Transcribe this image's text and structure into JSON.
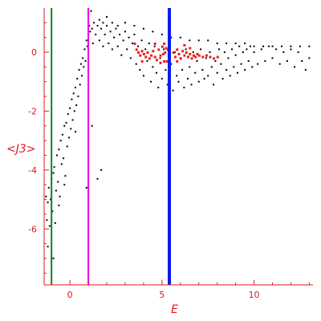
{
  "chart_data": {
    "type": "scatter",
    "title": "",
    "xlabel": "E",
    "ylabel": "<J3>",
    "xlim": [
      -1.4,
      13.2
    ],
    "ylim": [
      -7.9,
      1.5
    ],
    "x_ticks": [
      0,
      5,
      10
    ],
    "y_ticks": [
      0,
      -2,
      -4,
      -6
    ],
    "x_tick_labels": [
      "0",
      "5",
      "10"
    ],
    "y_tick_labels": [
      "0",
      "-2",
      "-4",
      "-6"
    ],
    "grid": false,
    "legend": "none",
    "axis_color": "#e0191c",
    "vertical_lines": [
      {
        "x": -1.0,
        "color": "#00861c"
      },
      {
        "x": 1.0,
        "color": "#ef00ef"
      },
      {
        "x": 5.4,
        "color": "#0a1bef"
      }
    ],
    "series": [
      {
        "color": "#000000",
        "points": [
          [
            -1.3,
            -4.9
          ],
          [
            -1.25,
            -5.7
          ],
          [
            -1.2,
            -5.1
          ],
          [
            -1.15,
            -4.6
          ],
          [
            -1.1,
            -5.9
          ],
          [
            -1.05,
            -5.0
          ],
          [
            -1.0,
            -4.3
          ],
          [
            -0.95,
            -5.4
          ],
          [
            -0.9,
            -4.1
          ],
          [
            -0.85,
            -3.9
          ],
          [
            -0.8,
            -5.8
          ],
          [
            -0.75,
            -4.7
          ],
          [
            -0.7,
            -3.5
          ],
          [
            -0.65,
            -4.4
          ],
          [
            -0.6,
            -3.3
          ],
          [
            -0.55,
            -4.9
          ],
          [
            -0.5,
            -3.0
          ],
          [
            -0.45,
            -3.8
          ],
          [
            -0.4,
            -2.8
          ],
          [
            -0.35,
            -3.6
          ],
          [
            -0.3,
            -2.5
          ],
          [
            -0.25,
            -4.2
          ],
          [
            -0.2,
            -2.4
          ],
          [
            -0.15,
            -3.2
          ],
          [
            -0.1,
            -2.1
          ],
          [
            -0.05,
            -2.9
          ],
          [
            0.0,
            -1.9
          ],
          [
            0.05,
            -2.6
          ],
          [
            0.1,
            -1.6
          ],
          [
            0.15,
            -2.3
          ],
          [
            0.2,
            -1.4
          ],
          [
            0.25,
            -2.0
          ],
          [
            0.3,
            -1.2
          ],
          [
            0.35,
            -1.8
          ],
          [
            0.4,
            -0.9
          ],
          [
            0.45,
            -1.5
          ],
          [
            0.5,
            -0.6
          ],
          [
            0.55,
            -1.1
          ],
          [
            0.6,
            -0.4
          ],
          [
            0.65,
            -0.8
          ],
          [
            0.7,
            -0.2
          ],
          [
            0.75,
            -0.5
          ],
          [
            0.8,
            0.1
          ],
          [
            0.85,
            -0.3
          ],
          [
            0.9,
            0.4
          ],
          [
            0.95,
            0.2
          ],
          [
            1.0,
            0.6
          ],
          [
            1.05,
            0.9
          ],
          [
            1.1,
            0.7
          ],
          [
            1.15,
            1.4
          ],
          [
            1.2,
            0.8
          ],
          [
            1.25,
            0.3
          ],
          [
            1.3,
            1.0
          ],
          [
            1.4,
            0.6
          ],
          [
            1.5,
            0.9
          ],
          [
            1.6,
            0.4
          ],
          [
            1.7,
            0.8
          ],
          [
            1.8,
            0.2
          ],
          [
            1.9,
            0.6
          ],
          [
            2.0,
            0.9
          ],
          [
            2.1,
            0.3
          ],
          [
            2.2,
            0.7
          ],
          [
            2.3,
            0.1
          ],
          [
            2.4,
            0.5
          ],
          [
            2.5,
            0.8
          ],
          [
            2.6,
            0.2
          ],
          [
            2.7,
            0.6
          ],
          [
            2.8,
            -0.1
          ],
          [
            2.9,
            0.4
          ],
          [
            3.0,
            0.7
          ],
          [
            3.1,
            0.1
          ],
          [
            3.2,
            0.5
          ],
          [
            3.3,
            -0.2
          ],
          [
            3.4,
            0.3
          ],
          [
            3.5,
            0.6
          ],
          [
            3.6,
            -0.4
          ],
          [
            3.7,
            0.2
          ],
          [
            3.8,
            -0.6
          ],
          [
            3.9,
            0.4
          ],
          [
            4.0,
            -0.8
          ],
          [
            4.1,
            0.1
          ],
          [
            4.2,
            -0.3
          ],
          [
            4.3,
            0.3
          ],
          [
            4.4,
            -1.0
          ],
          [
            4.5,
            -0.5
          ],
          [
            4.6,
            0.2
          ],
          [
            4.7,
            -0.7
          ],
          [
            4.8,
            -1.2
          ],
          [
            4.9,
            -0.2
          ],
          [
            5.0,
            -0.9
          ],
          [
            5.1,
            0.1
          ],
          [
            5.2,
            -0.6
          ],
          [
            5.3,
            -1.1
          ],
          [
            5.5,
            -0.4
          ],
          [
            5.6,
            -1.3
          ],
          [
            5.7,
            0.0
          ],
          [
            5.8,
            -0.8
          ],
          [
            5.9,
            -1.0
          ],
          [
            6.0,
            -0.2
          ],
          [
            6.1,
            -0.6
          ],
          [
            6.2,
            -1.2
          ],
          [
            6.3,
            0.1
          ],
          [
            6.4,
            -0.9
          ],
          [
            6.5,
            -0.5
          ],
          [
            6.6,
            -1.1
          ],
          [
            6.7,
            0.0
          ],
          [
            6.8,
            -0.7
          ],
          [
            6.9,
            -0.3
          ],
          [
            7.0,
            -1.0
          ],
          [
            7.1,
            0.1
          ],
          [
            7.2,
            -0.6
          ],
          [
            7.3,
            -0.9
          ],
          [
            7.4,
            -0.2
          ],
          [
            7.5,
            -0.8
          ],
          [
            7.6,
            0.0
          ],
          [
            7.7,
            -0.5
          ],
          [
            7.8,
            -1.1
          ],
          [
            7.9,
            -0.3
          ],
          [
            8.0,
            -0.7
          ],
          [
            8.1,
            0.1
          ],
          [
            8.2,
            -0.4
          ],
          [
            8.3,
            -0.9
          ],
          [
            8.4,
            0.0
          ],
          [
            8.5,
            -0.6
          ],
          [
            8.6,
            -0.2
          ],
          [
            8.7,
            -0.8
          ],
          [
            8.8,
            0.1
          ],
          [
            8.9,
            -0.5
          ],
          [
            9.0,
            -0.1
          ],
          [
            9.1,
            -0.7
          ],
          [
            9.2,
            0.2
          ],
          [
            9.3,
            -0.4
          ],
          [
            9.4,
            0.0
          ],
          [
            9.5,
            -0.6
          ],
          [
            9.6,
            0.1
          ],
          [
            9.7,
            -0.3
          ],
          [
            9.8,
            0.2
          ],
          [
            9.9,
            -0.5
          ],
          [
            10.0,
            0.0
          ],
          [
            10.2,
            -0.4
          ],
          [
            10.4,
            0.1
          ],
          [
            10.6,
            -0.3
          ],
          [
            10.8,
            0.2
          ],
          [
            11.0,
            -0.2
          ],
          [
            11.2,
            0.1
          ],
          [
            11.4,
            -0.4
          ],
          [
            11.6,
            0.0
          ],
          [
            11.8,
            -0.3
          ],
          [
            12.0,
            0.1
          ],
          [
            12.2,
            -0.5
          ],
          [
            12.4,
            0.0
          ],
          [
            12.6,
            -0.3
          ],
          [
            12.8,
            -0.6
          ],
          [
            13.0,
            -0.2
          ],
          [
            -1.2,
            -6.6
          ],
          [
            -0.9,
            -7.0
          ],
          [
            -0.6,
            -5.2
          ],
          [
            -0.3,
            -4.5
          ],
          [
            0.3,
            -2.7
          ],
          [
            0.9,
            -4.6
          ],
          [
            1.2,
            -2.5
          ],
          [
            1.5,
            -4.3
          ],
          [
            1.7,
            -4.0
          ],
          [
            1.6,
            1.1
          ],
          [
            1.8,
            1.0
          ],
          [
            2.0,
            1.2
          ],
          [
            2.3,
            1.0
          ],
          [
            2.6,
            0.9
          ],
          [
            3.0,
            1.0
          ],
          [
            3.5,
            0.9
          ],
          [
            4.0,
            0.8
          ],
          [
            4.5,
            0.7
          ],
          [
            5.0,
            0.6
          ],
          [
            5.5,
            0.5
          ],
          [
            6.0,
            0.5
          ],
          [
            6.5,
            0.4
          ],
          [
            7.0,
            0.4
          ],
          [
            7.5,
            0.4
          ],
          [
            8.0,
            0.3
          ],
          [
            8.5,
            0.3
          ],
          [
            9.0,
            0.3
          ],
          [
            9.5,
            0.3
          ],
          [
            10.0,
            0.2
          ],
          [
            10.5,
            0.2
          ],
          [
            11.0,
            0.2
          ],
          [
            11.5,
            0.2
          ],
          [
            12.0,
            0.2
          ],
          [
            12.5,
            0.2
          ],
          [
            13.0,
            0.2
          ]
        ]
      },
      {
        "color": "#ef1c1c",
        "points": [
          [
            3.6,
            0.1
          ],
          [
            3.7,
            0.0
          ],
          [
            3.8,
            -0.1
          ],
          [
            3.9,
            0.05
          ],
          [
            4.0,
            -0.05
          ],
          [
            4.1,
            -0.15
          ],
          [
            4.2,
            0.0
          ],
          [
            4.3,
            -0.2
          ],
          [
            4.4,
            -0.1
          ],
          [
            4.5,
            0.05
          ],
          [
            4.6,
            -0.15
          ],
          [
            4.7,
            -0.25
          ],
          [
            4.8,
            0.1
          ],
          [
            4.9,
            -0.1
          ],
          [
            5.0,
            0.2
          ],
          [
            5.05,
            -0.05
          ],
          [
            5.1,
            0.3
          ],
          [
            5.15,
            0.0
          ],
          [
            5.2,
            0.15
          ],
          [
            5.25,
            -0.3
          ],
          [
            5.3,
            0.1
          ],
          [
            5.35,
            -0.1
          ],
          [
            5.6,
            0.0
          ],
          [
            5.7,
            -0.15
          ],
          [
            5.8,
            0.1
          ],
          [
            5.9,
            -0.05
          ],
          [
            6.0,
            -0.2
          ],
          [
            6.1,
            0.05
          ],
          [
            6.2,
            -0.1
          ],
          [
            6.3,
            0.0
          ],
          [
            6.4,
            -0.15
          ],
          [
            6.5,
            -0.05
          ],
          [
            6.6,
            -0.2
          ],
          [
            6.7,
            -0.1
          ],
          [
            6.8,
            -0.15
          ],
          [
            6.9,
            -0.05
          ],
          [
            7.0,
            -0.1
          ],
          [
            7.2,
            -0.15
          ],
          [
            7.4,
            -0.1
          ],
          [
            7.6,
            -0.15
          ],
          [
            7.8,
            -0.2
          ],
          [
            8.0,
            -0.15
          ],
          [
            3.5,
            0.3
          ],
          [
            3.9,
            -0.3
          ],
          [
            4.6,
            0.3
          ],
          [
            4.9,
            -0.35
          ],
          [
            5.1,
            -0.3
          ],
          [
            5.8,
            -0.3
          ],
          [
            6.2,
            0.25
          ],
          [
            6.5,
            0.15
          ]
        ]
      }
    ]
  }
}
